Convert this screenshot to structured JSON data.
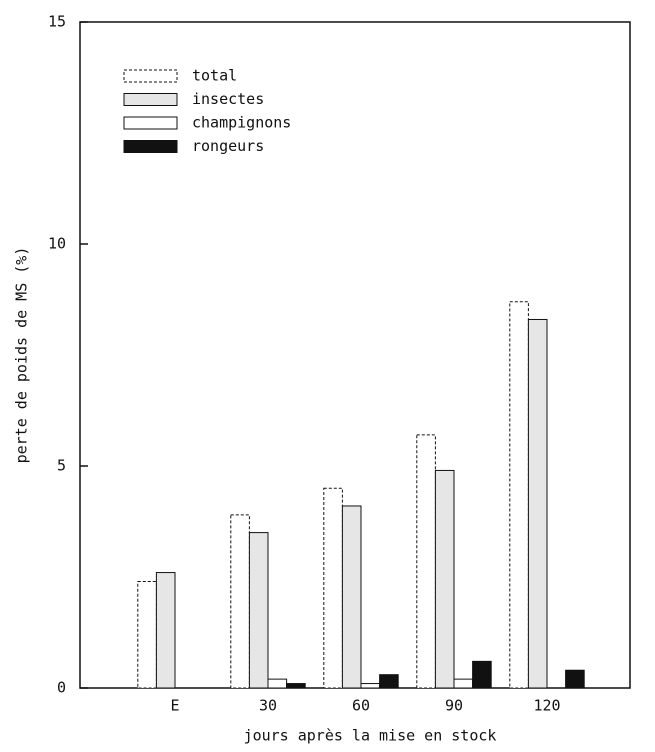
{
  "chart_data": {
    "type": "bar",
    "xlabel": "jours après la mise en stock",
    "ylabel": "perte de poids de MS (%)",
    "categories": [
      "E",
      "30",
      "60",
      "90",
      "120"
    ],
    "series": [
      {
        "name": "total",
        "color": "#ffffff",
        "values": [
          2.4,
          3.9,
          4.5,
          5.7,
          8.7
        ]
      },
      {
        "name": "insectes",
        "color": "#e6e6e6",
        "values": [
          2.6,
          3.5,
          4.1,
          4.9,
          8.3
        ]
      },
      {
        "name": "champignons",
        "color": "#ffffff",
        "values": [
          0,
          0.2,
          0.1,
          0.2,
          0
        ]
      },
      {
        "name": "rongeurs",
        "color": "#111111",
        "values": [
          0,
          0.1,
          0.3,
          0.6,
          0.4
        ]
      }
    ],
    "ylim": [
      0,
      15
    ],
    "yticks": [
      0,
      5,
      10,
      15
    ],
    "legend": "upper left"
  }
}
